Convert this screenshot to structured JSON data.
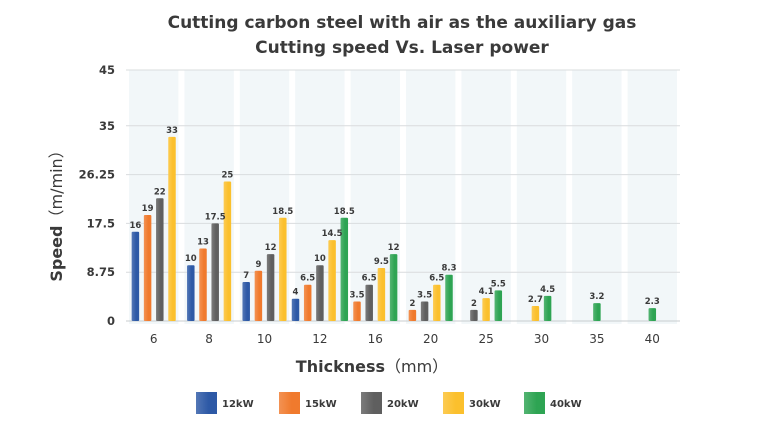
{
  "chart_data": {
    "type": "bar",
    "title": [
      "Cutting carbon steel with air as the auxiliary gas",
      "Cutting speed Vs. Laser power"
    ],
    "xlabel": "Thickness",
    "xlabel_unit": "（mm）",
    "ylabel": "Speed",
    "ylabel_unit": "（m/min）",
    "ylim": [
      0,
      45
    ],
    "yticks": [
      "0",
      "8.75",
      "17.5",
      "26.25",
      "35",
      "45"
    ],
    "ytick_values": [
      0,
      8.75,
      17.5,
      26.25,
      35,
      45
    ],
    "categories": [
      "6",
      "8",
      "10",
      "12",
      "16",
      "20",
      "25",
      "30",
      "35",
      "40"
    ],
    "grid": true,
    "legend_position": "bottom",
    "series": [
      {
        "name": "12kW",
        "color": "#2d59a6",
        "values": [
          16,
          10,
          7,
          4,
          null,
          null,
          null,
          null,
          null,
          null
        ],
        "labels": [
          "16",
          "10",
          "7",
          "4",
          "",
          "",
          "",
          "",
          "",
          ""
        ]
      },
      {
        "name": "15kW",
        "color": "#f07a2d",
        "values": [
          19,
          13,
          9,
          6.5,
          3.5,
          2,
          null,
          null,
          null,
          null
        ],
        "labels": [
          "19",
          "13",
          "9",
          "6.5",
          "3.5",
          "2",
          "",
          "",
          "",
          ""
        ]
      },
      {
        "name": "20kW",
        "color": "#5f5f5f",
        "values": [
          22,
          17.5,
          12,
          10,
          6.5,
          3.5,
          2,
          null,
          null,
          null
        ],
        "labels": [
          "22",
          "17.5",
          "12",
          "10",
          "6.5",
          "3.5",
          "2",
          "",
          "",
          ""
        ]
      },
      {
        "name": "30kW",
        "color": "#fbc02d",
        "values": [
          33,
          25,
          18.5,
          14.5,
          9.5,
          6.5,
          4.1,
          2.7,
          null,
          null
        ],
        "labels": [
          "33",
          "25",
          "18.5",
          "14.5",
          "9.5",
          "6.5",
          "4.1",
          "2.7",
          "",
          ""
        ]
      },
      {
        "name": "40kW",
        "color": "#2ea453",
        "values": [
          null,
          null,
          null,
          18.5,
          12,
          8.3,
          5.5,
          4.5,
          3.2,
          2.3
        ],
        "labels": [
          "",
          "",
          "",
          "18.5",
          "12",
          "8.3",
          "5.5",
          "4.5",
          "3.2",
          "2.3"
        ]
      }
    ]
  }
}
